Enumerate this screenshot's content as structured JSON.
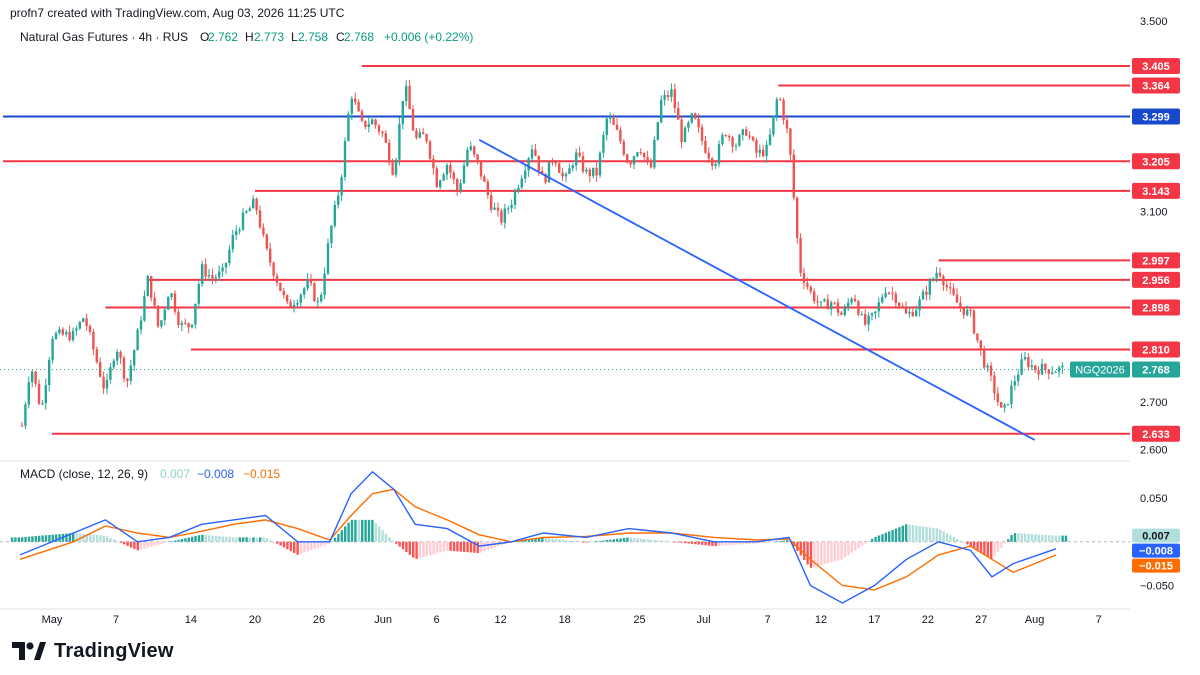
{
  "header": {
    "credit": "profn7 created with TradingView.com, Aug 03, 2026 11:25 UTC"
  },
  "legend": {
    "symbol": "Natural Gas Futures · 4h · RUS",
    "o_label": "O",
    "o_value": "2.762",
    "h_label": "H",
    "h_value": "2.773",
    "l_label": "L",
    "l_value": "2.758",
    "c_label": "C",
    "c_value": "2.768",
    "change": "+0.006 (+0.22%)"
  },
  "macd_legend": {
    "label": "MACD (close, 12, 26, 9)",
    "hist": "0.007",
    "macd": "−0.008",
    "signal": "−0.015"
  },
  "brand": {
    "name": "TradingView"
  },
  "colors": {
    "up": "#26a69a",
    "down": "#ef5350",
    "resistance": "#f23645",
    "blue_line": "#1848cc",
    "trend": "#2962ff",
    "macd": "#2962ff",
    "signal": "#ff6d00",
    "hist_up_strong": "#26a69a",
    "hist_up_weak": "#b2dfdb",
    "hist_down_strong": "#ff5252",
    "hist_down_weak": "#ffcdd2"
  },
  "chart_data": [
    {
      "type": "candlestick",
      "title": "Natural Gas Futures · 4h · RUS",
      "x_ticks": [
        "May",
        "7",
        "14",
        "20",
        "26",
        "Jun",
        "6",
        "12",
        "18",
        "25",
        "Jul",
        "7",
        "12",
        "17",
        "22",
        "27",
        "Aug",
        "7"
      ],
      "y_ticks": [
        "3.500",
        "3.100",
        "2.700",
        "2.600"
      ],
      "ylim": [
        2.58,
        3.51
      ],
      "ohlc_last": {
        "open": 2.762,
        "high": 2.773,
        "low": 2.758,
        "close": 2.768
      },
      "close_path": [
        [
          "Apr 28",
          2.62
        ],
        [
          "Apr 29",
          2.78
        ],
        [
          "Apr 30",
          2.68
        ],
        [
          "May 1",
          2.84
        ],
        [
          "May 3",
          2.84
        ],
        [
          "May 4",
          2.88
        ],
        [
          "May 5",
          2.8
        ],
        [
          "May 6",
          2.72
        ],
        [
          "May 7",
          2.82
        ],
        [
          "May 8",
          2.74
        ],
        [
          "May 9",
          2.84
        ],
        [
          "May 10",
          2.96
        ],
        [
          "May 11",
          2.85
        ],
        [
          "May 12",
          2.94
        ],
        [
          "May 13",
          2.86
        ],
        [
          "May 14",
          2.86
        ],
        [
          "May 15",
          2.98
        ],
        [
          "May 16",
          2.96
        ],
        [
          "May 17",
          2.97
        ],
        [
          "May 18",
          3.05
        ],
        [
          "May 19",
          3.09
        ],
        [
          "May 20",
          3.12
        ],
        [
          "May 21",
          3.02
        ],
        [
          "May 22",
          2.96
        ],
        [
          "May 23",
          2.9
        ],
        [
          "May 24",
          2.92
        ],
        [
          "May 25",
          2.95
        ],
        [
          "May 26",
          2.9
        ],
        [
          "May 27",
          3.05
        ],
        [
          "May 28",
          3.16
        ],
        [
          "May 29",
          3.35
        ],
        [
          "May 30",
          3.28
        ],
        [
          "May 31",
          3.29
        ],
        [
          "Jun 1",
          3.26
        ],
        [
          "Jun 2",
          3.18
        ],
        [
          "Jun 3",
          3.37
        ],
        [
          "Jun 4",
          3.25
        ],
        [
          "Jun 5",
          3.26
        ],
        [
          "Jun 6",
          3.16
        ],
        [
          "Jun 7",
          3.2
        ],
        [
          "Jun 8",
          3.14
        ],
        [
          "Jun 9",
          3.24
        ],
        [
          "Jun 10",
          3.19
        ],
        [
          "Jun 11",
          3.12
        ],
        [
          "Jun 12",
          3.08
        ],
        [
          "Jun 13",
          3.12
        ],
        [
          "Jun 14",
          3.18
        ],
        [
          "Jun 15",
          3.24
        ],
        [
          "Jun 16",
          3.16
        ],
        [
          "Jun 17",
          3.22
        ],
        [
          "Jun 18",
          3.16
        ],
        [
          "Jun 19",
          3.22
        ],
        [
          "Jun 20",
          3.18
        ],
        [
          "Jun 21",
          3.18
        ],
        [
          "Jun 22",
          3.3
        ],
        [
          "Jun 23",
          3.26
        ],
        [
          "Jun 24",
          3.2
        ],
        [
          "Jun 25",
          3.24
        ],
        [
          "Jun 26",
          3.18
        ],
        [
          "Jun 27",
          3.33
        ],
        [
          "Jun 28",
          3.35
        ],
        [
          "Jun 29",
          3.25
        ],
        [
          "Jun 30",
          3.3
        ],
        [
          "Jul 1",
          3.24
        ],
        [
          "Jul 2",
          3.2
        ],
        [
          "Jul 3",
          3.27
        ],
        [
          "Jul 4",
          3.24
        ],
        [
          "Jul 5",
          3.27
        ],
        [
          "Jul 6",
          3.22
        ],
        [
          "Jul 7",
          3.23
        ],
        [
          "Jul 8",
          3.35
        ],
        [
          "Jul 9",
          3.25
        ],
        [
          "Jul 10",
          2.98
        ],
        [
          "Jul 11",
          2.93
        ],
        [
          "Jul 12",
          2.9
        ],
        [
          "Jul 13",
          2.91
        ],
        [
          "Jul 14",
          2.88
        ],
        [
          "Jul 15",
          2.93
        ],
        [
          "Jul 16",
          2.86
        ],
        [
          "Jul 17",
          2.88
        ],
        [
          "Jul 18",
          2.94
        ],
        [
          "Jul 19",
          2.92
        ],
        [
          "Jul 20",
          2.88
        ],
        [
          "Jul 21",
          2.9
        ],
        [
          "Jul 22",
          2.94
        ],
        [
          "Jul 23",
          2.98
        ],
        [
          "Jul 24",
          2.93
        ],
        [
          "Jul 25",
          2.9
        ],
        [
          "Jul 26",
          2.88
        ],
        [
          "Jul 27",
          2.8
        ],
        [
          "Jul 28",
          2.74
        ],
        [
          "Jul 29",
          2.67
        ],
        [
          "Jul 30",
          2.74
        ],
        [
          "Jul 31",
          2.79
        ],
        [
          "Aug 1",
          2.77
        ],
        [
          "Aug 3",
          2.768
        ]
      ],
      "horizontal_levels": [
        {
          "value": 3.405,
          "label": "3.405",
          "kind": "resistance",
          "from": "May 30"
        },
        {
          "value": 3.364,
          "label": "3.364",
          "kind": "resistance",
          "from": "Jul 8"
        },
        {
          "value": 3.299,
          "label": "3.299",
          "kind": "pivot",
          "from": "start"
        },
        {
          "value": 3.205,
          "label": "3.205",
          "kind": "resistance",
          "from": "start"
        },
        {
          "value": 3.143,
          "label": "3.143",
          "kind": "resistance",
          "from": "May 20"
        },
        {
          "value": 2.997,
          "label": "2.997",
          "kind": "resistance",
          "from": "Jul 23"
        },
        {
          "value": 2.956,
          "label": "2.956",
          "kind": "resistance",
          "from": "May 10"
        },
        {
          "value": 2.898,
          "label": "2.898",
          "kind": "resistance",
          "from": "May 6"
        },
        {
          "value": 2.81,
          "label": "2.810",
          "kind": "resistance",
          "from": "May 14"
        },
        {
          "value": 2.633,
          "label": "2.633",
          "kind": "support",
          "from": "May 1"
        }
      ],
      "trendline": {
        "from": [
          "Jun 10",
          3.25
        ],
        "to": [
          "Aug 1",
          2.62
        ]
      },
      "current_price": {
        "symbol": "NGQ2026",
        "value": "2.768"
      }
    },
    {
      "type": "macd",
      "title": "MACD (close, 12, 26, 9)",
      "y_ticks": [
        "0.050",
        "−0.050"
      ],
      "ylim": [
        -0.07,
        0.09
      ],
      "last": {
        "histogram": 0.007,
        "macd": -0.008,
        "signal": -0.015
      },
      "macd_path": [
        [
          "Apr 28",
          -0.015
        ],
        [
          "May 3",
          0.01
        ],
        [
          "May 6",
          0.025
        ],
        [
          "May 9",
          0.0
        ],
        [
          "May 12",
          0.005
        ],
        [
          "May 15",
          0.02
        ],
        [
          "May 18",
          0.025
        ],
        [
          "May 21",
          0.03
        ],
        [
          "May 24",
          0.0
        ],
        [
          "May 27",
          0.0
        ],
        [
          "May 29",
          0.055
        ],
        [
          "May 31",
          0.08
        ],
        [
          "Jun 2",
          0.06
        ],
        [
          "Jun 4",
          0.02
        ],
        [
          "Jun 7",
          0.015
        ],
        [
          "Jun 10",
          -0.005
        ],
        [
          "Jun 13",
          0.0
        ],
        [
          "Jun 16",
          0.01
        ],
        [
          "Jun 20",
          0.005
        ],
        [
          "Jun 24",
          0.015
        ],
        [
          "Jun 28",
          0.01
        ],
        [
          "Jul 2",
          0.0
        ],
        [
          "Jul 6",
          0.0
        ],
        [
          "Jul 9",
          0.005
        ],
        [
          "Jul 11",
          -0.05
        ],
        [
          "Jul 14",
          -0.07
        ],
        [
          "Jul 17",
          -0.05
        ],
        [
          "Jul 20",
          -0.02
        ],
        [
          "Jul 23",
          0.0
        ],
        [
          "Jul 26",
          -0.01
        ],
        [
          "Jul 28",
          -0.04
        ],
        [
          "Jul 30",
          -0.025
        ],
        [
          "Aug 3",
          -0.008
        ]
      ],
      "signal_path": [
        [
          "Apr 28",
          -0.02
        ],
        [
          "May 3",
          0.0
        ],
        [
          "May 6",
          0.018
        ],
        [
          "May 9",
          0.01
        ],
        [
          "May 12",
          0.005
        ],
        [
          "May 15",
          0.012
        ],
        [
          "May 18",
          0.02
        ],
        [
          "May 21",
          0.025
        ],
        [
          "May 24",
          0.015
        ],
        [
          "May 27",
          0.002
        ],
        [
          "May 29",
          0.03
        ],
        [
          "May 31",
          0.055
        ],
        [
          "Jun 2",
          0.06
        ],
        [
          "Jun 4",
          0.04
        ],
        [
          "Jun 7",
          0.025
        ],
        [
          "Jun 10",
          0.008
        ],
        [
          "Jun 13",
          0.0
        ],
        [
          "Jun 16",
          0.005
        ],
        [
          "Jun 20",
          0.006
        ],
        [
          "Jun 24",
          0.01
        ],
        [
          "Jun 28",
          0.01
        ],
        [
          "Jul 2",
          0.005
        ],
        [
          "Jul 6",
          0.002
        ],
        [
          "Jul 9",
          0.003
        ],
        [
          "Jul 11",
          -0.02
        ],
        [
          "Jul 14",
          -0.05
        ],
        [
          "Jul 17",
          -0.055
        ],
        [
          "Jul 20",
          -0.04
        ],
        [
          "Jul 23",
          -0.015
        ],
        [
          "Jul 26",
          -0.005
        ],
        [
          "Jul 28",
          -0.02
        ],
        [
          "Jul 30",
          -0.035
        ],
        [
          "Aug 3",
          -0.015
        ]
      ]
    }
  ]
}
